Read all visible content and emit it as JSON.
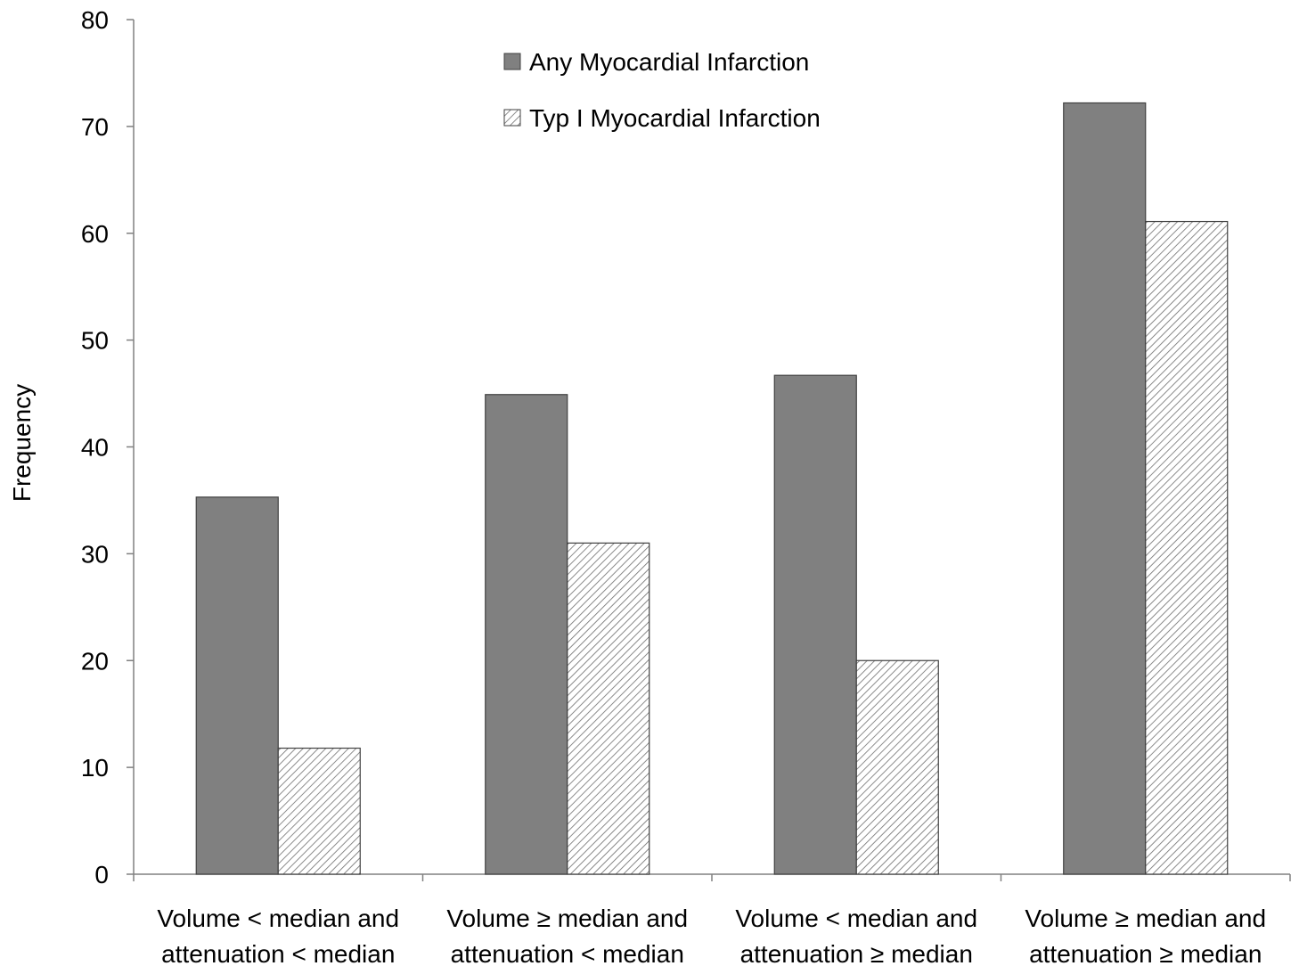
{
  "chart_data": {
    "type": "bar",
    "title": "",
    "xlabel": "",
    "ylabel": "Frequency",
    "ylim": [
      0,
      80
    ],
    "yticks": [
      0,
      10,
      20,
      30,
      40,
      50,
      60,
      70,
      80
    ],
    "grid": false,
    "legend_position": "top-center",
    "categories": [
      [
        "Volume < median and",
        "attenuation < median"
      ],
      [
        "Volume ≥ median and",
        "attenuation < median"
      ],
      [
        "Volume < median and",
        "attenuation ≥ median"
      ],
      [
        "Volume ≥ median and",
        "attenuation ≥ median"
      ]
    ],
    "series": [
      {
        "name": "Any Myocardial Infarction",
        "values": [
          35.3,
          44.9,
          46.7,
          72.2
        ],
        "color": "#808080",
        "pattern": "solid"
      },
      {
        "name": "Typ I Myocardial Infarction",
        "values": [
          11.8,
          31.0,
          20.0,
          61.1
        ],
        "color": "#ffffff",
        "pattern": "diagonal-hatch"
      }
    ]
  }
}
